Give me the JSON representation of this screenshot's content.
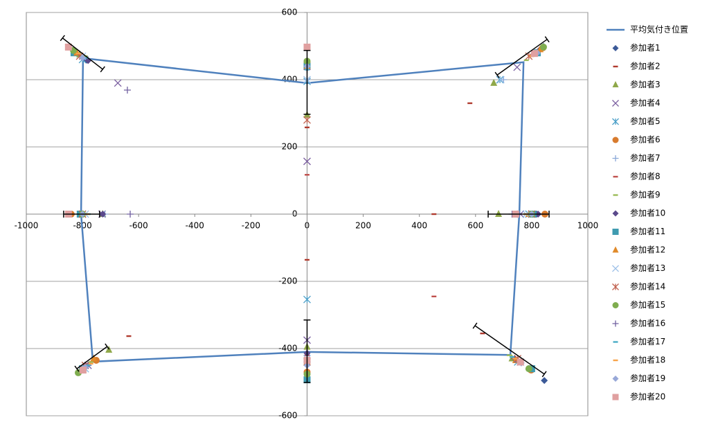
{
  "chart_data": {
    "type": "scatter",
    "xlim": [
      -1000,
      1000
    ],
    "xticks": [
      -1000,
      -800,
      -600,
      -400,
      -200,
      0,
      200,
      400,
      600,
      800,
      1000
    ],
    "ylim": [
      -600,
      600
    ],
    "yticks": [
      -600,
      -400,
      -200,
      0,
      200,
      400,
      600
    ],
    "grid": true,
    "legend": "right",
    "average": {
      "name": "平均気付き位置",
      "color": "#4f81bd",
      "x": [
        -798,
        0,
        771,
        756,
        724,
        0,
        -763,
        -805,
        -798
      ],
      "y": [
        464,
        390,
        452,
        0,
        -419,
        -410,
        -439,
        0,
        464
      ],
      "error_bars": [
        {
          "x": [
            -871,
            -728
          ],
          "y": [
            524,
            431
          ]
        },
        {
          "x": [
            0,
            0
          ],
          "y": [
            487,
            297
          ]
        },
        {
          "x": [
            677,
            855
          ],
          "y": [
            414,
            520
          ]
        },
        {
          "x": [
            645,
            862
          ],
          "y": [
            0,
            0
          ]
        },
        {
          "x": [
            598,
            845
          ],
          "y": [
            -332,
            -476
          ]
        },
        {
          "x": [
            0,
            0
          ],
          "y": [
            -315,
            -501
          ]
        },
        {
          "x": [
            -820,
            -712
          ],
          "y": [
            -460,
            -394
          ]
        },
        {
          "x": [
            -867,
            -739
          ],
          "y": [
            0,
            0
          ]
        }
      ]
    },
    "series": [
      {
        "name": "参加者1",
        "color": "#3c5a98",
        "marker": "diamond",
        "x": [
          -786,
          0,
          842,
          -800,
          818,
          -790,
          0,
          845
        ],
        "y": [
          458,
          441,
          499,
          0,
          0,
          -455,
          -440,
          -495
        ]
      },
      {
        "name": "参加者2",
        "color": "#b03a2e",
        "marker": "dash",
        "x": [
          -810,
          0,
          580,
          -800,
          452,
          -635,
          0,
          625
        ],
        "y": [
          470,
          258,
          330,
          0,
          0,
          -363,
          -136,
          -355
        ]
      },
      {
        "name": "参加者3",
        "color": "#8fa84a",
        "marker": "triangle",
        "x": [
          -810,
          0,
          665,
          -728,
          682,
          -706,
          0,
          730
        ],
        "y": [
          475,
          295,
          390,
          0,
          0,
          -404,
          -395,
          -430
        ]
      },
      {
        "name": "参加者4",
        "color": "#7a5ea0",
        "marker": "x",
        "x": [
          -674,
          0,
          748,
          -730,
          760,
          -780,
          0,
          760
        ],
        "y": [
          390,
          157,
          437,
          0,
          0,
          -450,
          -375,
          -440
        ]
      },
      {
        "name": "参加者5",
        "color": "#4a9fc8",
        "marker": "asterisk",
        "x": [
          -800,
          0,
          687,
          -800,
          790,
          -790,
          0,
          750
        ],
        "y": [
          460,
          395,
          400,
          0,
          0,
          -460,
          -254,
          -440
        ]
      },
      {
        "name": "参加者6",
        "color": "#d87b2e",
        "marker": "circle",
        "x": [
          -830,
          0,
          840,
          -840,
          847,
          -751,
          0,
          798
        ],
        "y": [
          485,
          450,
          495,
          0,
          0,
          -435,
          -470,
          -464
        ]
      },
      {
        "name": "参加者7",
        "color": "#8aa8d8",
        "marker": "plus",
        "x": [
          -780,
          0,
          700,
          -720,
          740,
          -780,
          0,
          760
        ],
        "y": [
          460,
          400,
          400,
          0,
          0,
          -450,
          -420,
          -440
        ]
      },
      {
        "name": "参加者8",
        "color": "#c0504d",
        "marker": "dash",
        "x": [
          -820,
          0,
          800,
          -810,
          800,
          -790,
          0,
          452
        ],
        "y": [
          475,
          117,
          470,
          0,
          0,
          -450,
          -420,
          -245
        ]
      },
      {
        "name": "参加者9",
        "color": "#9bbb59",
        "marker": "dash",
        "x": [
          -790,
          0,
          781,
          -780,
          780,
          -770,
          0,
          720
        ],
        "y": [
          470,
          440,
          458,
          0,
          0,
          -440,
          -430,
          -420
        ]
      },
      {
        "name": "参加者10",
        "color": "#5b4a8c",
        "marker": "diamond",
        "x": [
          -780,
          0,
          830,
          -728,
          823,
          -800,
          0,
          740
        ],
        "y": [
          457,
          435,
          490,
          0,
          0,
          -460,
          -414,
          -430
        ]
      },
      {
        "name": "参加者11",
        "color": "#3f9bb0",
        "marker": "square",
        "x": [
          -830,
          0,
          820,
          -808,
          805,
          -800,
          0,
          800
        ],
        "y": [
          480,
          440,
          480,
          0,
          0,
          -460,
          -493,
          -460
        ]
      },
      {
        "name": "参加者12",
        "color": "#e08a2a",
        "marker": "triangle",
        "x": [
          -820,
          0,
          830,
          -800,
          790,
          -760,
          0,
          743
        ],
        "y": [
          480,
          440,
          490,
          0,
          0,
          -430,
          -440,
          -435
        ]
      },
      {
        "name": "参加者13",
        "color": "#9dc0e8",
        "marker": "x",
        "x": [
          -800,
          0,
          690,
          -790,
          780,
          -790,
          0,
          760
        ],
        "y": [
          470,
          400,
          400,
          0,
          0,
          -460,
          -430,
          -440
        ]
      },
      {
        "name": "参加者14",
        "color": "#c0604d",
        "marker": "asterisk",
        "x": [
          -810,
          0,
          790,
          -800,
          800,
          -790,
          0,
          750
        ],
        "y": [
          470,
          280,
          470,
          0,
          0,
          -450,
          -440,
          -430
        ]
      },
      {
        "name": "参加者15",
        "color": "#7fad4f",
        "marker": "circle",
        "x": [
          -832,
          0,
          842,
          -800,
          800,
          -815,
          0,
          790
        ],
        "y": [
          487,
          455,
          497,
          0,
          0,
          -472,
          -476,
          -460
        ]
      },
      {
        "name": "参加者16",
        "color": "#7060a0",
        "marker": "plus",
        "x": [
          -640,
          0,
          820,
          -630,
          730,
          -780,
          0,
          750
        ],
        "y": [
          369,
          430,
          480,
          0,
          0,
          -450,
          -440,
          -440
        ]
      },
      {
        "name": "参加者17",
        "color": "#4aacc6",
        "marker": "dash",
        "x": [
          -790,
          0,
          810,
          -780,
          790,
          -780,
          0,
          730
        ],
        "y": [
          465,
          430,
          475,
          0,
          0,
          -450,
          -430,
          -425
        ]
      },
      {
        "name": "参加者18",
        "color": "#f7a34a",
        "marker": "dash",
        "x": [
          -815,
          0,
          800,
          -783,
          780,
          -770,
          0,
          740
        ],
        "y": [
          478,
          440,
          470,
          0,
          0,
          -445,
          -440,
          -430
        ]
      },
      {
        "name": "参加者19",
        "color": "#98a8d8",
        "marker": "diamond",
        "x": [
          -800,
          0,
          820,
          -800,
          800,
          -790,
          0,
          763
        ],
        "y": [
          465,
          440,
          480,
          0,
          0,
          -456,
          -450,
          -443
        ]
      },
      {
        "name": "参加者20",
        "color": "#e0a0a0",
        "marker": "square",
        "x": [
          -850,
          0,
          810,
          -850,
          743,
          -798,
          0,
          760
        ],
        "y": [
          497,
          497,
          478,
          0,
          0,
          -464,
          -435,
          -440
        ]
      }
    ]
  }
}
